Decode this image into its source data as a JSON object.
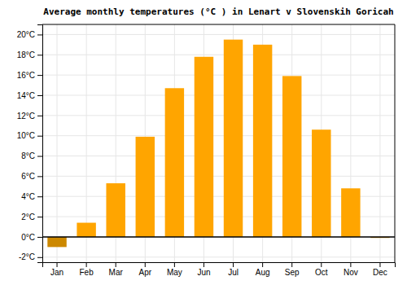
{
  "chart_data": {
    "type": "bar",
    "title": "Average monthly temperatures (°C ) in Lenart v Slovenskih Goricah",
    "categories": [
      "Jan",
      "Feb",
      "Mar",
      "Apr",
      "May",
      "Jun",
      "Jul",
      "Aug",
      "Sep",
      "Oct",
      "Nov",
      "Dec"
    ],
    "values": [
      -1.0,
      1.4,
      5.3,
      9.9,
      14.7,
      17.8,
      19.5,
      19.0,
      15.9,
      10.6,
      4.8,
      -0.1
    ],
    "colors": [
      "#CC8800",
      "#FFA500",
      "#FFA500",
      "#FFA500",
      "#FFA500",
      "#FFA500",
      "#FFA500",
      "#FFA500",
      "#FFA500",
      "#FFA500",
      "#FFA500",
      "#CC8800"
    ],
    "ylim": [
      -2.5,
      21.0
    ],
    "yticks": [
      {
        "value": -2,
        "label": "-2°C"
      },
      {
        "value": 0,
        "label": "0°C"
      },
      {
        "value": 2,
        "label": "2°C"
      },
      {
        "value": 4,
        "label": "4°C"
      },
      {
        "value": 6,
        "label": "6°C"
      },
      {
        "value": 8,
        "label": "8°C"
      },
      {
        "value": 10,
        "label": "10°C"
      },
      {
        "value": 12,
        "label": "12°C"
      },
      {
        "value": 14,
        "label": "14°C"
      },
      {
        "value": 16,
        "label": "16°C"
      },
      {
        "value": 18,
        "label": "18°C"
      },
      {
        "value": 20,
        "label": "20°C"
      }
    ],
    "grid": true
  }
}
